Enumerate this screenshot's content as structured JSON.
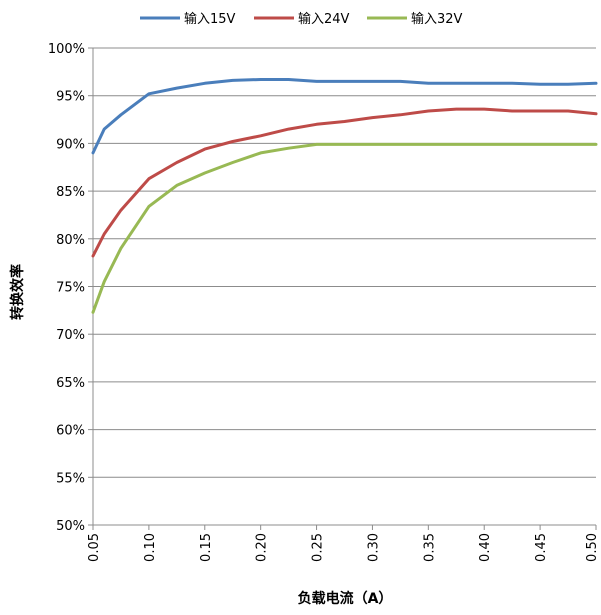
{
  "chart_data": {
    "type": "line",
    "title": "",
    "xlabel": "负载电流（A）",
    "ylabel": "转换效率",
    "xlim": [
      0.05,
      0.5
    ],
    "ylim": [
      50,
      100
    ],
    "x_ticks": [
      "0.05",
      "0.10",
      "0.15",
      "0.20",
      "0.25",
      "0.30",
      "0.35",
      "0.40",
      "0.45",
      "0.50"
    ],
    "y_ticks": [
      "50%",
      "55%",
      "60%",
      "65%",
      "70%",
      "75%",
      "80%",
      "85%",
      "90%",
      "95%",
      "100%"
    ],
    "grid": "horizontal",
    "legend_position": "top",
    "series": [
      {
        "name": "输入15V",
        "color": "#4a7ebb",
        "points": [
          [
            0.05,
            89.0
          ],
          [
            0.06,
            91.5
          ],
          [
            0.075,
            93.0
          ],
          [
            0.1,
            95.2
          ],
          [
            0.125,
            95.8
          ],
          [
            0.15,
            96.3
          ],
          [
            0.175,
            96.6
          ],
          [
            0.2,
            96.7
          ],
          [
            0.225,
            96.7
          ],
          [
            0.25,
            96.5
          ],
          [
            0.275,
            96.5
          ],
          [
            0.3,
            96.5
          ],
          [
            0.325,
            96.5
          ],
          [
            0.35,
            96.3
          ],
          [
            0.375,
            96.3
          ],
          [
            0.4,
            96.3
          ],
          [
            0.425,
            96.3
          ],
          [
            0.45,
            96.2
          ],
          [
            0.475,
            96.2
          ],
          [
            0.5,
            96.3
          ]
        ]
      },
      {
        "name": "输入24V",
        "color": "#be4b48",
        "points": [
          [
            0.05,
            78.2
          ],
          [
            0.06,
            80.5
          ],
          [
            0.075,
            83.0
          ],
          [
            0.1,
            86.3
          ],
          [
            0.125,
            88.0
          ],
          [
            0.15,
            89.4
          ],
          [
            0.175,
            90.2
          ],
          [
            0.2,
            90.8
          ],
          [
            0.225,
            91.5
          ],
          [
            0.25,
            92.0
          ],
          [
            0.275,
            92.3
          ],
          [
            0.3,
            92.7
          ],
          [
            0.325,
            93.0
          ],
          [
            0.35,
            93.4
          ],
          [
            0.375,
            93.6
          ],
          [
            0.4,
            93.6
          ],
          [
            0.425,
            93.4
          ],
          [
            0.45,
            93.4
          ],
          [
            0.475,
            93.4
          ],
          [
            0.5,
            93.1
          ]
        ]
      },
      {
        "name": "输入32V",
        "color": "#98b954",
        "points": [
          [
            0.05,
            72.3
          ],
          [
            0.06,
            75.5
          ],
          [
            0.075,
            79.0
          ],
          [
            0.1,
            83.4
          ],
          [
            0.125,
            85.6
          ],
          [
            0.15,
            86.9
          ],
          [
            0.175,
            88.0
          ],
          [
            0.2,
            89.0
          ],
          [
            0.225,
            89.5
          ],
          [
            0.25,
            89.9
          ],
          [
            0.275,
            89.9
          ],
          [
            0.3,
            89.9
          ],
          [
            0.325,
            89.9
          ],
          [
            0.35,
            89.9
          ],
          [
            0.375,
            89.9
          ],
          [
            0.4,
            89.9
          ],
          [
            0.425,
            89.9
          ],
          [
            0.45,
            89.9
          ],
          [
            0.475,
            89.9
          ],
          [
            0.5,
            89.9
          ]
        ]
      }
    ]
  }
}
